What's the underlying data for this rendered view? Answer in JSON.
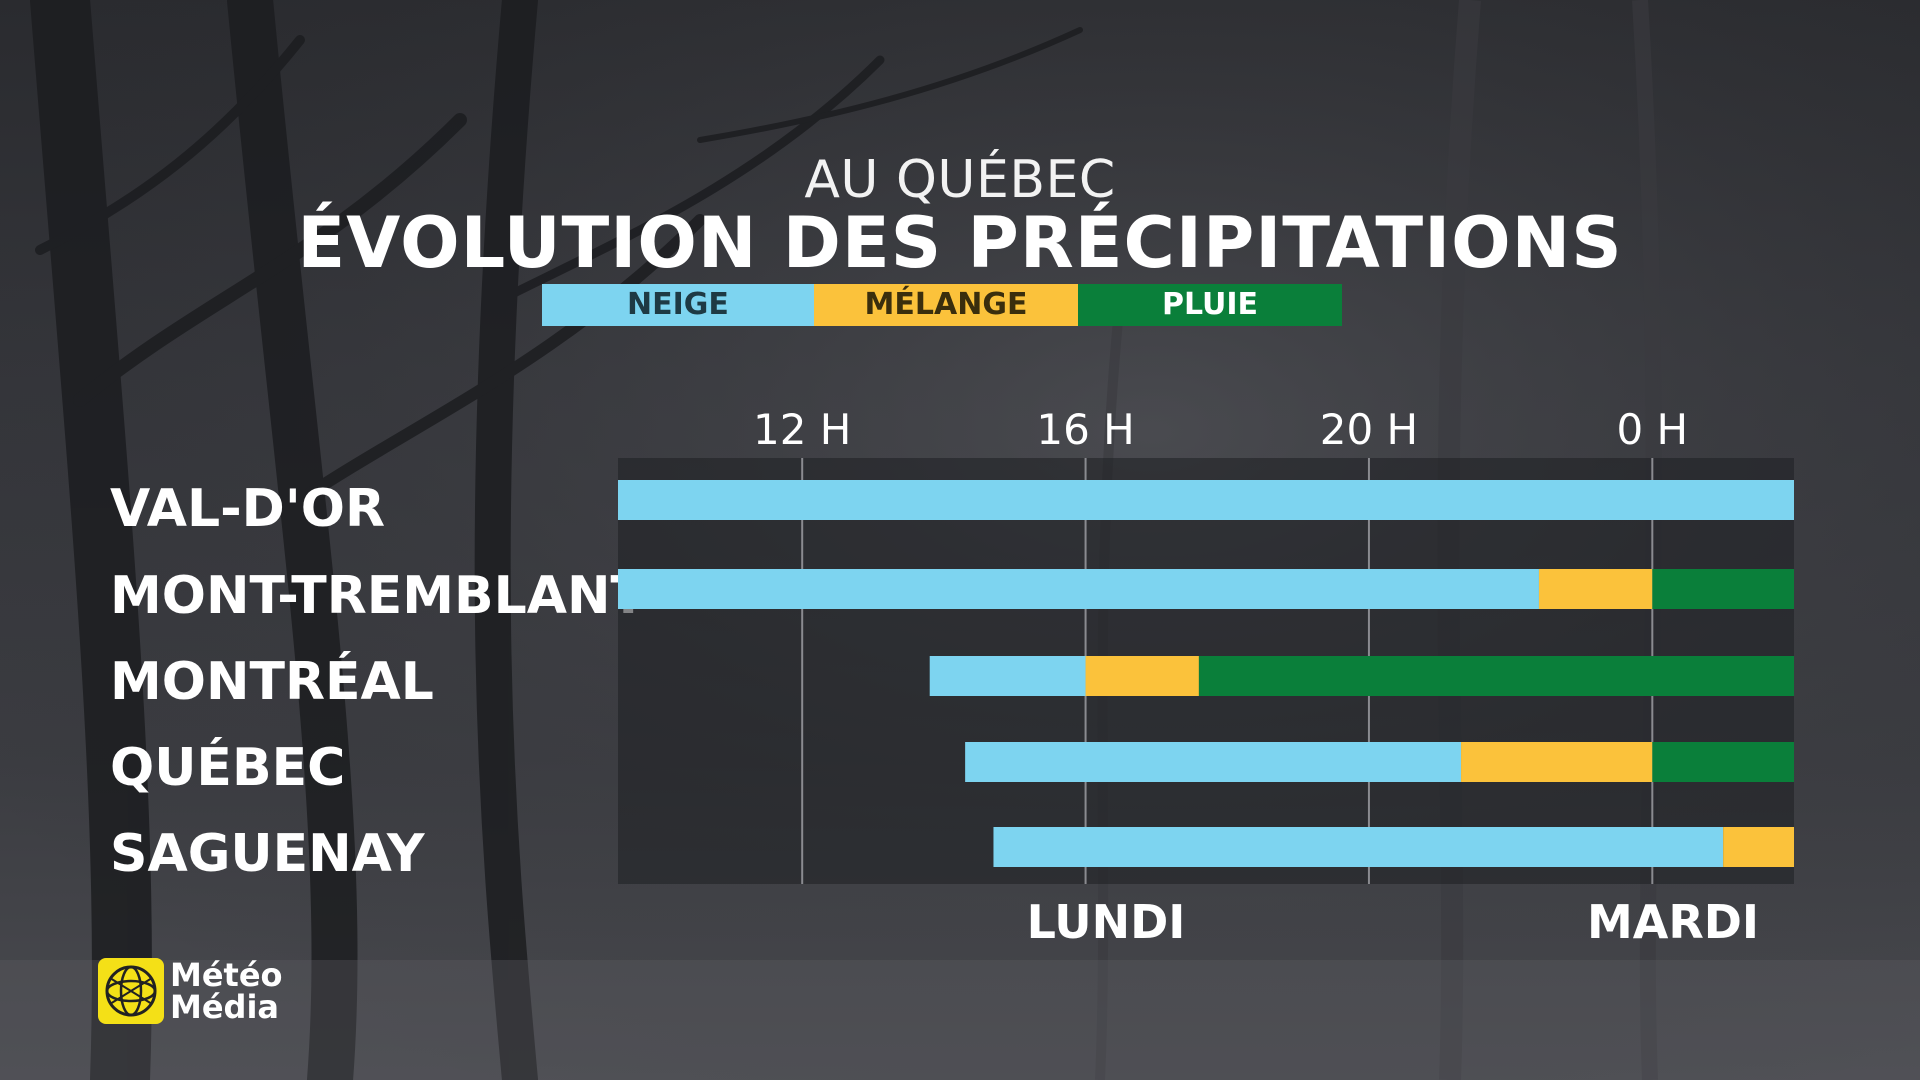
{
  "header": {
    "subtitle": "AU QUÉBEC",
    "title": "ÉVOLUTION DES PRÉCIPITATIONS"
  },
  "legend": [
    {
      "label": "NEIGE",
      "color": "#7dd4f0",
      "text_color": "#1e3a44"
    },
    {
      "label": "MÉLANGE",
      "color": "#fbc23b",
      "text_color": "#3a2e0d"
    },
    {
      "label": "PLUIE",
      "color": "#0a7f3a",
      "text_color": "#ffffff"
    }
  ],
  "logo": {
    "line1": "Météo",
    "line2": "Média",
    "icon": "globe-logo-icon",
    "color": "#f4e017"
  },
  "chart_data": {
    "type": "bar",
    "orientation": "horizontal-stacked-timeline",
    "title": "ÉVOLUTION DES PRÉCIPITATIONS",
    "subtitle": "AU QUÉBEC",
    "x_unit": "hours",
    "x_range_hours": [
      9.4,
      26.0
    ],
    "x_ticks": [
      {
        "label": "12 H",
        "hour": 12
      },
      {
        "label": "16 H",
        "hour": 16
      },
      {
        "label": "20 H",
        "hour": 20
      },
      {
        "label": "0 H",
        "hour": 24
      }
    ],
    "day_labels": [
      {
        "label": "LUNDI",
        "hour": 16.2
      },
      {
        "label": "MARDI",
        "hour": 24.2
      }
    ],
    "grid": true,
    "colors": {
      "NEIGE": "#7dd4f0",
      "MÉLANGE": "#fbc23b",
      "PLUIE": "#0a7f3a"
    },
    "categories": [
      "VAL-D'OR",
      "MONT-TREMBLANT",
      "MONTRÉAL",
      "QUÉBEC",
      "SAGUENAY"
    ],
    "rows": [
      {
        "city": "VAL-D'OR",
        "segments": [
          {
            "type": "NEIGE",
            "start": 9.4,
            "end": 26.0
          }
        ]
      },
      {
        "city": "MONT-TREMBLANT",
        "segments": [
          {
            "type": "NEIGE",
            "start": 9.4,
            "end": 22.4
          },
          {
            "type": "MÉLANGE",
            "start": 22.4,
            "end": 24.0
          },
          {
            "type": "PLUIE",
            "start": 24.0,
            "end": 26.0
          }
        ]
      },
      {
        "city": "MONTRÉAL",
        "segments": [
          {
            "type": "NEIGE",
            "start": 13.8,
            "end": 16.0
          },
          {
            "type": "MÉLANGE",
            "start": 16.0,
            "end": 17.6
          },
          {
            "type": "PLUIE",
            "start": 17.6,
            "end": 26.0
          }
        ]
      },
      {
        "city": "QUÉBEC",
        "segments": [
          {
            "type": "NEIGE",
            "start": 14.3,
            "end": 21.3
          },
          {
            "type": "MÉLANGE",
            "start": 21.3,
            "end": 24.0
          },
          {
            "type": "PLUIE",
            "start": 24.0,
            "end": 26.0
          }
        ]
      },
      {
        "city": "SAGUENAY",
        "segments": [
          {
            "type": "NEIGE",
            "start": 14.7,
            "end": 25.0
          },
          {
            "type": "MÉLANGE",
            "start": 25.0,
            "end": 26.0
          }
        ]
      }
    ]
  }
}
